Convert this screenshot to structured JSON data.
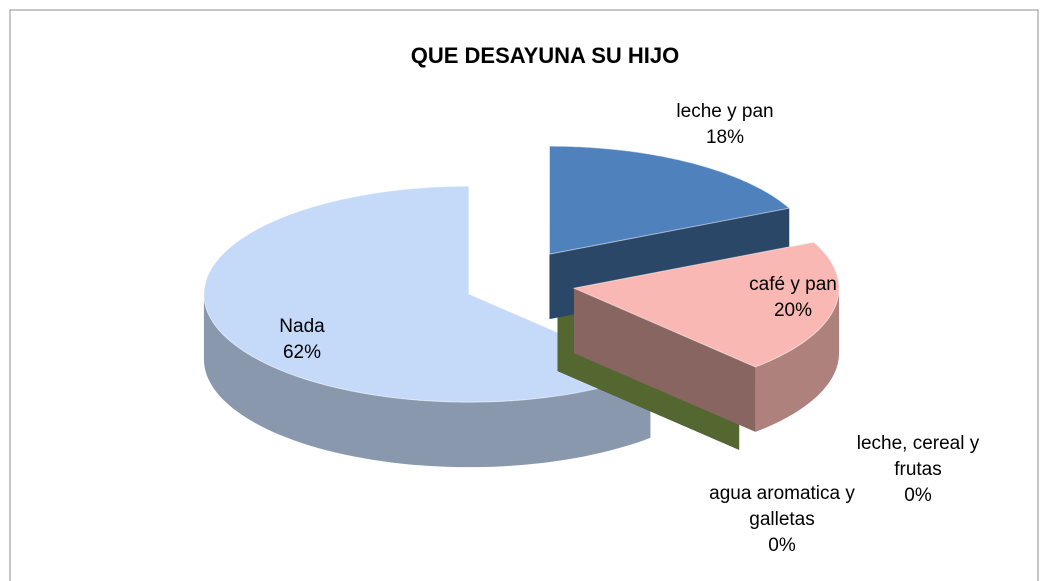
{
  "chart_data": {
    "type": "pie",
    "title": "QUE DESAYUNA SU HIJO",
    "categories": [
      "leche y pan",
      "café y pan",
      "leche, cereal y frutas",
      "agua aromatica y galletas",
      "Nada"
    ],
    "values": [
      18,
      20,
      0,
      0,
      62
    ],
    "value_labels": [
      "18%",
      "20%",
      "0%",
      "0%",
      "62%"
    ],
    "colors": [
      "#4f81bd",
      "#f9b8b3",
      "#9bbb59",
      "#4a3b6b",
      "#c5d9f8"
    ]
  }
}
